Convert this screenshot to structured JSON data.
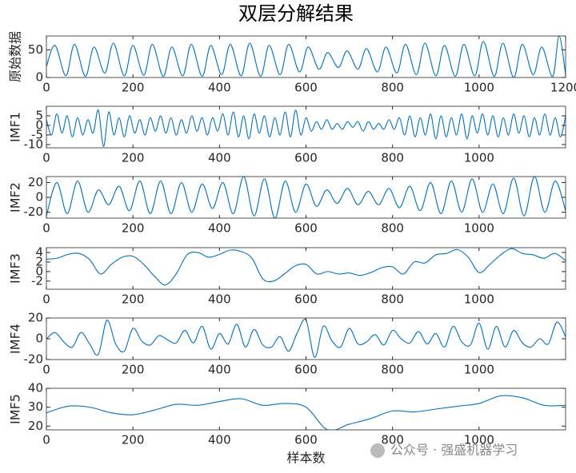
{
  "title": "双层分解结果",
  "watermark": "公众号 · 强盛机器学习",
  "chart_data": [
    {
      "type": "line",
      "ylabel": "原始数据",
      "color": "#0072BD",
      "xlim": [
        0,
        1200
      ],
      "ylim": [
        0,
        75
      ],
      "xticks": [
        0,
        200,
        400,
        600,
        800,
        1000,
        1200
      ],
      "yticks": [
        0,
        50
      ],
      "x": [
        0,
        20,
        45,
        65,
        90,
        110,
        135,
        155,
        180,
        200,
        225,
        245,
        270,
        290,
        315,
        335,
        360,
        380,
        405,
        425,
        450,
        470,
        495,
        515,
        540,
        560,
        585,
        605,
        630,
        650,
        675,
        695,
        720,
        740,
        765,
        785,
        810,
        830,
        855,
        875,
        900,
        920,
        945,
        965,
        990,
        1010,
        1035,
        1055,
        1080,
        1100,
        1125,
        1145,
        1170,
        1185,
        1200
      ],
      "values": [
        20,
        58,
        3,
        60,
        2,
        55,
        8,
        62,
        3,
        58,
        4,
        60,
        2,
        55,
        3,
        60,
        2,
        58,
        5,
        60,
        3,
        62,
        2,
        58,
        5,
        60,
        10,
        55,
        15,
        45,
        18,
        48,
        15,
        52,
        10,
        55,
        8,
        60,
        5,
        62,
        3,
        58,
        2,
        60,
        3,
        65,
        2,
        62,
        0,
        60,
        5,
        55,
        2,
        75,
        5
      ]
    },
    {
      "type": "line",
      "ylabel": "IMF1",
      "color": "#0072BD",
      "xlim": [
        0,
        1200
      ],
      "ylim": [
        -11.7,
        10
      ],
      "xticks": [
        0,
        200,
        400,
        600,
        800,
        1000
      ],
      "yticks": [
        -10,
        -5,
        0,
        5
      ],
      "x": [
        0,
        12,
        24,
        36,
        48,
        60,
        72,
        84,
        96,
        108,
        120,
        132,
        144,
        156,
        168,
        180,
        192,
        204,
        216,
        228,
        240,
        252,
        264,
        276,
        288,
        300,
        312,
        324,
        336,
        348,
        360,
        372,
        384,
        396,
        408,
        420,
        432,
        444,
        456,
        468,
        480,
        492,
        504,
        516,
        528,
        540,
        552,
        564,
        576,
        588,
        600,
        612,
        624,
        636,
        648,
        660,
        672,
        684,
        696,
        708,
        720,
        732,
        744,
        756,
        768,
        780,
        792,
        804,
        816,
        828,
        840,
        852,
        864,
        876,
        888,
        900,
        912,
        924,
        936,
        948,
        960,
        972,
        984,
        996,
        1008,
        1020,
        1032,
        1044,
        1056,
        1068,
        1080,
        1092,
        1104,
        1116,
        1128,
        1140,
        1152,
        1164,
        1176,
        1188,
        1200
      ],
      "values": [
        3,
        -5,
        6,
        -4,
        5,
        -6,
        4,
        -5,
        3,
        -4,
        8,
        -11,
        7,
        -5,
        4,
        -6,
        5,
        -4,
        3,
        -5,
        4,
        -3,
        5,
        -4,
        4,
        -5,
        3,
        -4,
        5,
        -3,
        4,
        -5,
        4,
        -3,
        6,
        -5,
        7,
        -6,
        5,
        -7,
        6,
        -4,
        5,
        -6,
        4,
        -5,
        7,
        -6,
        8,
        -5,
        4,
        -3,
        2,
        -2,
        3,
        -2,
        1,
        -2,
        2,
        -1,
        2,
        -3,
        2,
        -2,
        1,
        -2,
        3,
        -2,
        4,
        -5,
        5,
        -6,
        4,
        -5,
        6,
        -7,
        5,
        -6,
        4,
        -5,
        6,
        -7,
        5,
        -4,
        6,
        -5,
        5,
        -6,
        4,
        -5,
        6,
        -4,
        5,
        -6,
        4,
        -5,
        6,
        -5,
        4,
        -6,
        5
      ]
    },
    {
      "type": "line",
      "ylabel": "IMF2",
      "color": "#0072BD",
      "xlim": [
        0,
        1200
      ],
      "ylim": [
        -28,
        28
      ],
      "xticks": [
        0,
        200,
        400,
        600,
        800,
        1000
      ],
      "yticks": [
        -20,
        0,
        20
      ],
      "x": [
        0,
        24,
        48,
        72,
        96,
        120,
        144,
        168,
        192,
        216,
        240,
        264,
        288,
        312,
        336,
        360,
        384,
        408,
        432,
        456,
        480,
        504,
        528,
        552,
        576,
        600,
        624,
        648,
        672,
        696,
        720,
        744,
        768,
        792,
        816,
        840,
        864,
        888,
        912,
        936,
        960,
        984,
        1008,
        1032,
        1056,
        1080,
        1104,
        1128,
        1152,
        1176,
        1200
      ],
      "values": [
        -25,
        20,
        -22,
        22,
        -20,
        10,
        -10,
        15,
        -18,
        22,
        -22,
        22,
        -22,
        20,
        -20,
        18,
        -15,
        20,
        -22,
        28,
        -25,
        25,
        -28,
        22,
        -20,
        18,
        -12,
        10,
        -8,
        12,
        -10,
        8,
        -10,
        12,
        -14,
        15,
        -18,
        20,
        -22,
        22,
        -20,
        25,
        -20,
        18,
        -22,
        26,
        -25,
        28,
        -20,
        22,
        -18
      ]
    },
    {
      "type": "line",
      "ylabel": "IMF3",
      "color": "#0072BD",
      "xlim": [
        0,
        1200
      ],
      "ylim": [
        -3.7,
        5
      ],
      "xticks": [
        0,
        200,
        400,
        600,
        800,
        1000
      ],
      "yticks": [
        -2,
        0,
        2,
        4
      ],
      "x": [
        0,
        25,
        50,
        75,
        100,
        125,
        150,
        175,
        200,
        225,
        250,
        275,
        300,
        325,
        350,
        375,
        400,
        425,
        450,
        475,
        500,
        525,
        550,
        575,
        600,
        625,
        650,
        675,
        700,
        725,
        750,
        775,
        800,
        825,
        850,
        875,
        900,
        925,
        950,
        975,
        1000,
        1025,
        1050,
        1075,
        1100,
        1125,
        1150,
        1175,
        1200
      ],
      "values": [
        2.6,
        2.8,
        3.6,
        3.8,
        2.5,
        -0.5,
        1.5,
        3,
        3.2,
        1.5,
        -1,
        -2.8,
        -0.5,
        3.5,
        4,
        3,
        3.6,
        4.5,
        4.2,
        2.8,
        -1.5,
        -2,
        -0.5,
        1.2,
        1.5,
        -0.5,
        0,
        -0.5,
        -0.3,
        -0.8,
        -0.2,
        0.8,
        1,
        -0.5,
        2,
        1.8,
        3.5,
        3.8,
        4.6,
        3,
        -0.2,
        1.5,
        3.5,
        4.8,
        3.8,
        3.5,
        2.8,
        3.8,
        2.3
      ]
    },
    {
      "type": "line",
      "ylabel": "IMF4",
      "color": "#0072BD",
      "xlim": [
        0,
        1200
      ],
      "ylim": [
        -20,
        20
      ],
      "xticks": [
        0,
        200,
        400,
        600,
        800,
        1000
      ],
      "yticks": [
        -20,
        0,
        20
      ],
      "x": [
        0,
        20,
        40,
        60,
        80,
        100,
        120,
        140,
        160,
        180,
        200,
        220,
        240,
        260,
        280,
        300,
        320,
        340,
        360,
        380,
        400,
        420,
        440,
        460,
        480,
        500,
        520,
        540,
        560,
        580,
        600,
        620,
        640,
        660,
        680,
        700,
        720,
        740,
        760,
        780,
        800,
        820,
        840,
        860,
        880,
        900,
        920,
        940,
        960,
        980,
        1000,
        1020,
        1040,
        1060,
        1080,
        1100,
        1120,
        1140,
        1160,
        1180,
        1200
      ],
      "values": [
        0,
        6,
        -3,
        -8,
        6,
        -5,
        -15,
        18,
        -5,
        -12,
        10,
        -2,
        -6,
        3,
        -1,
        -4,
        8,
        -4,
        12,
        -10,
        5,
        -5,
        14,
        -8,
        9,
        -6,
        -8,
        2,
        -12,
        6,
        18,
        -18,
        12,
        -2,
        -8,
        10,
        -5,
        -3,
        4,
        -6,
        8,
        0,
        -4,
        7,
        -5,
        5,
        -8,
        12,
        -3,
        -6,
        15,
        -10,
        12,
        -8,
        8,
        -4,
        -8,
        0,
        -5,
        16,
        2
      ]
    },
    {
      "type": "line",
      "ylabel": "IMF5",
      "xlabel": "样本数",
      "color": "#0072BD",
      "xlim": [
        0,
        1200
      ],
      "ylim": [
        18,
        40
      ],
      "xticks": [
        0,
        200,
        400,
        600,
        800,
        1000
      ],
      "yticks": [
        20,
        30,
        40
      ],
      "x": [
        0,
        50,
        100,
        150,
        200,
        250,
        300,
        350,
        400,
        450,
        500,
        550,
        600,
        650,
        700,
        750,
        800,
        850,
        900,
        950,
        1000,
        1050,
        1100,
        1150,
        1200
      ],
      "values": [
        27,
        30.5,
        30,
        27,
        26,
        28.5,
        31.5,
        31,
        33,
        34.5,
        31,
        32,
        30,
        18,
        21,
        24,
        28,
        27.5,
        29,
        30.5,
        32,
        36,
        35,
        31,
        31
      ]
    }
  ]
}
